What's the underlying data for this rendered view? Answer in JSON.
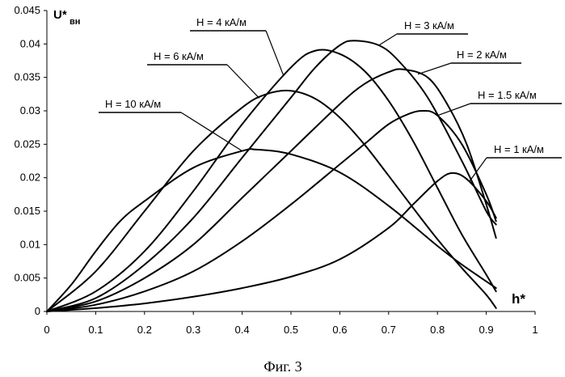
{
  "chart_data": {
    "type": "line",
    "ylabel": "U*",
    "ylabel_sub": "вн",
    "xlabel": "h*",
    "caption": "Фиг. 3",
    "xlim": [
      0,
      1
    ],
    "ylim": [
      0,
      0.045
    ],
    "xticks": [
      "0",
      "0.1",
      "0.2",
      "0.3",
      "0.4",
      "0.5",
      "0.6",
      "0.7",
      "0.8",
      "0.9",
      "1"
    ],
    "xtick_values": [
      0,
      0.1,
      0.2,
      0.3,
      0.4,
      0.5,
      0.6,
      0.7,
      0.8,
      0.9,
      1
    ],
    "yticks": [
      "0",
      "0.005",
      "0.01",
      "0.015",
      "0.02",
      "0.025",
      "0.03",
      "0.035",
      "0.04",
      "0.045"
    ],
    "ytick_values": [
      0,
      0.005,
      0.01,
      0.015,
      0.02,
      0.025,
      0.03,
      0.035,
      0.04,
      0.045
    ],
    "grid": false,
    "series": [
      {
        "name": "H = 1 кА/м",
        "x": [
          0,
          0.1,
          0.2,
          0.3,
          0.4,
          0.5,
          0.6,
          0.7,
          0.75,
          0.8,
          0.83,
          0.86,
          0.9,
          0.92
        ],
        "y": [
          0,
          0.0005,
          0.0012,
          0.0022,
          0.0035,
          0.0052,
          0.0078,
          0.0125,
          0.016,
          0.0195,
          0.0207,
          0.0198,
          0.0165,
          0.014
        ]
      },
      {
        "name": "H = 1.5 кА/м",
        "x": [
          0,
          0.1,
          0.2,
          0.3,
          0.4,
          0.5,
          0.6,
          0.65,
          0.7,
          0.74,
          0.77,
          0.8,
          0.85,
          0.9,
          0.92
        ],
        "y": [
          0,
          0.001,
          0.003,
          0.006,
          0.0105,
          0.016,
          0.022,
          0.025,
          0.028,
          0.0295,
          0.03,
          0.0293,
          0.025,
          0.0175,
          0.0135
        ]
      },
      {
        "name": "H = 2 кА/м",
        "x": [
          0,
          0.1,
          0.2,
          0.3,
          0.4,
          0.5,
          0.6,
          0.65,
          0.7,
          0.73,
          0.78,
          0.82,
          0.86,
          0.9,
          0.92
        ],
        "y": [
          0,
          0.0015,
          0.005,
          0.01,
          0.017,
          0.024,
          0.031,
          0.034,
          0.0358,
          0.0362,
          0.035,
          0.031,
          0.025,
          0.016,
          0.011
        ]
      },
      {
        "name": "H = 3 кА/м",
        "x": [
          0,
          0.1,
          0.2,
          0.3,
          0.4,
          0.5,
          0.55,
          0.6,
          0.63,
          0.68,
          0.72,
          0.78,
          0.85,
          0.9,
          0.92
        ],
        "y": [
          0,
          0.002,
          0.007,
          0.014,
          0.023,
          0.032,
          0.0365,
          0.0398,
          0.0405,
          0.0398,
          0.0375,
          0.032,
          0.0225,
          0.015,
          0.013
        ]
      },
      {
        "name": "H = 4 кА/м",
        "x": [
          0,
          0.1,
          0.2,
          0.3,
          0.4,
          0.5,
          0.55,
          0.6,
          0.65,
          0.7,
          0.75,
          0.8,
          0.85,
          0.9,
          0.92
        ],
        "y": [
          0,
          0.003,
          0.009,
          0.018,
          0.028,
          0.0365,
          0.039,
          0.0385,
          0.036,
          0.0315,
          0.0255,
          0.0185,
          0.0115,
          0.0055,
          0.003
        ]
      },
      {
        "name": "H = 6 кА/м",
        "x": [
          0,
          0.1,
          0.2,
          0.3,
          0.4,
          0.45,
          0.5,
          0.55,
          0.6,
          0.65,
          0.7,
          0.75,
          0.8,
          0.85,
          0.9,
          0.92
        ],
        "y": [
          0,
          0.006,
          0.015,
          0.024,
          0.0305,
          0.0325,
          0.033,
          0.0318,
          0.029,
          0.025,
          0.0203,
          0.0155,
          0.0108,
          0.0065,
          0.0025,
          0.0005
        ]
      },
      {
        "name": "H = 10 кА/м",
        "x": [
          0,
          0.05,
          0.1,
          0.15,
          0.2,
          0.3,
          0.4,
          0.43,
          0.5,
          0.6,
          0.7,
          0.8,
          0.85,
          0.9,
          0.92
        ],
        "y": [
          0,
          0.004,
          0.009,
          0.0135,
          0.0165,
          0.0215,
          0.024,
          0.0242,
          0.0235,
          0.0208,
          0.0158,
          0.0098,
          0.007,
          0.0045,
          0.0035
        ]
      }
    ]
  }
}
